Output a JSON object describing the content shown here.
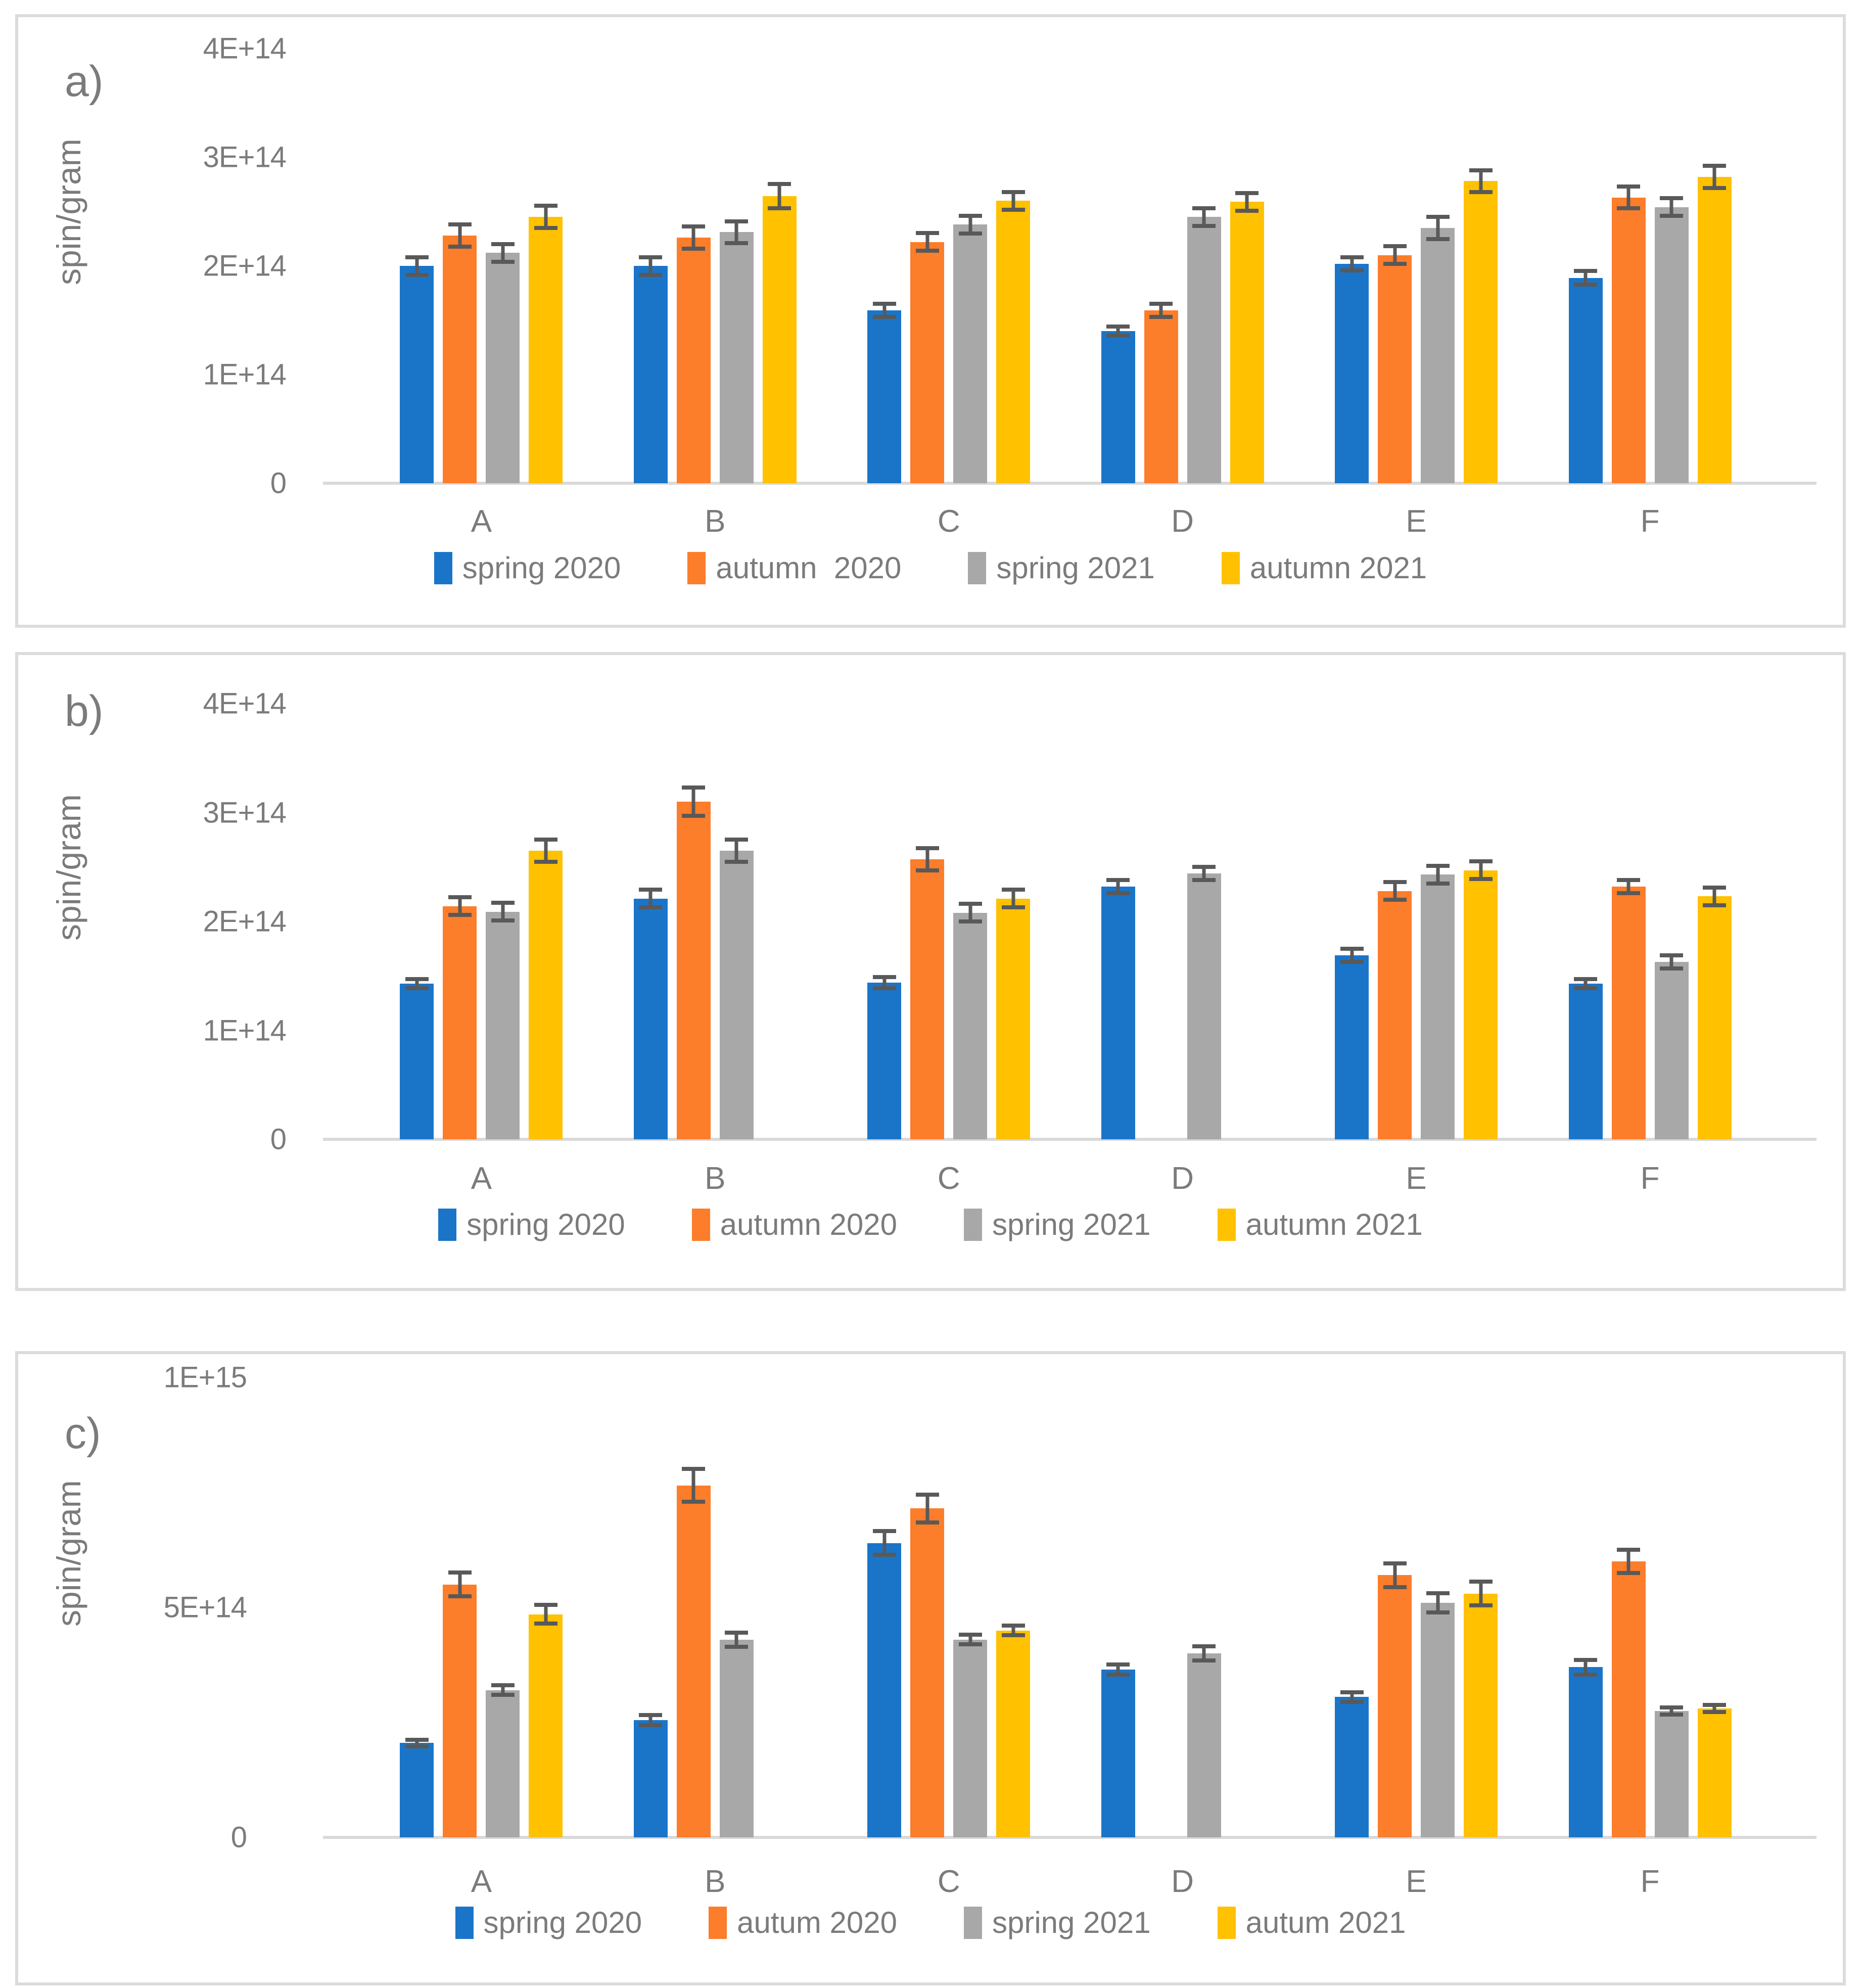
{
  "figure": {
    "background": "#ffffff",
    "panel_border_color": "#dcdcdc",
    "axis_line_color": "#d9d9d9",
    "text_color": "#7b7b7b",
    "error_bar_color": "#595959"
  },
  "colors": {
    "blue": "#1a75c9",
    "orange": "#fc7d2a",
    "gray": "#a8a8a8",
    "yellow": "#ffc100"
  },
  "chart_data": [
    {
      "type": "bar",
      "panel_label": "a)",
      "ylabel": "spin/gram",
      "unit": "spin/gram",
      "value_scale": "1E+14",
      "ymax": 4,
      "ylim": [
        0,
        4
      ],
      "grid": false,
      "legend_position": "bottom",
      "yticks": [
        {
          "value": 0,
          "label": "0"
        },
        {
          "value": 1,
          "label": "1E+14"
        },
        {
          "value": 2,
          "label": "2E+14"
        },
        {
          "value": 3,
          "label": "3E+14"
        },
        {
          "value": 4,
          "label": "4E+14"
        }
      ],
      "categories": [
        "A",
        "B",
        "C",
        "D",
        "E",
        "F"
      ],
      "series": [
        {
          "name": "spring 2020",
          "color_key": "blue",
          "values": [
            2.0,
            2.0,
            1.59,
            1.4,
            2.02,
            1.89
          ],
          "errors": [
            0.1,
            0.1,
            0.08,
            0.06,
            0.08,
            0.08
          ]
        },
        {
          "name": "autumn  2020",
          "color_key": "orange",
          "values": [
            2.28,
            2.26,
            2.22,
            1.59,
            2.1,
            2.63
          ],
          "errors": [
            0.12,
            0.12,
            0.1,
            0.08,
            0.1,
            0.12
          ]
        },
        {
          "name": "spring 2021",
          "color_key": "gray",
          "values": [
            2.12,
            2.31,
            2.38,
            2.45,
            2.35,
            2.54
          ],
          "errors": [
            0.1,
            0.12,
            0.1,
            0.1,
            0.12,
            0.1
          ]
        },
        {
          "name": "autumn 2021",
          "color_key": "yellow",
          "values": [
            2.45,
            2.64,
            2.6,
            2.59,
            2.78,
            2.82
          ],
          "errors": [
            0.12,
            0.13,
            0.1,
            0.1,
            0.12,
            0.12
          ]
        }
      ]
    },
    {
      "type": "bar",
      "panel_label": "b)",
      "ylabel": "spin/gram",
      "unit": "spin/gram",
      "value_scale": "1E+14",
      "ymax": 4,
      "ylim": [
        0,
        4
      ],
      "grid": false,
      "legend_position": "bottom",
      "yticks": [
        {
          "value": 0,
          "label": "0"
        },
        {
          "value": 1,
          "label": "1E+14"
        },
        {
          "value": 2,
          "label": "2E+14"
        },
        {
          "value": 3,
          "label": "3E+14"
        },
        {
          "value": 4,
          "label": "4E+14"
        }
      ],
      "categories": [
        "A",
        "B",
        "C",
        "D",
        "E",
        "F"
      ],
      "series": [
        {
          "name": "spring 2020",
          "color_key": "blue",
          "values": [
            1.43,
            2.21,
            1.44,
            2.32,
            1.69,
            1.43
          ],
          "errors": [
            0.06,
            0.1,
            0.07,
            0.08,
            0.08,
            0.06
          ]
        },
        {
          "name": "autumn 2020",
          "color_key": "orange",
          "values": [
            2.14,
            3.1,
            2.57,
            null,
            2.28,
            2.32
          ],
          "errors": [
            0.1,
            0.15,
            0.12,
            null,
            0.1,
            0.08
          ]
        },
        {
          "name": "spring 2021",
          "color_key": "gray",
          "values": [
            2.09,
            2.65,
            2.08,
            2.44,
            2.43,
            1.63
          ],
          "errors": [
            0.1,
            0.12,
            0.1,
            0.08,
            0.1,
            0.08
          ]
        },
        {
          "name": "autumn 2021",
          "color_key": "yellow",
          "values": [
            2.65,
            null,
            2.21,
            null,
            2.47,
            2.23
          ],
          "errors": [
            0.12,
            null,
            0.1,
            null,
            0.1,
            0.1
          ]
        }
      ]
    },
    {
      "type": "bar",
      "panel_label": "c)",
      "ylabel": "spin/gram",
      "unit": "spin/gram",
      "value_scale": "1E+14",
      "ymax": 10,
      "ylim": [
        0,
        10
      ],
      "grid": false,
      "legend_position": "bottom",
      "yticks": [
        {
          "value": 0,
          "label": "0"
        },
        {
          "value": 5,
          "label": "5E+14"
        },
        {
          "value": 10,
          "label": "1E+15"
        }
      ],
      "categories": [
        "A",
        "B",
        "C",
        "D",
        "E",
        "F"
      ],
      "series": [
        {
          "name": "spring 2020",
          "color_key": "blue",
          "values": [
            2.05,
            2.55,
            6.4,
            3.65,
            3.05,
            3.7
          ],
          "errors": [
            0.12,
            0.15,
            0.3,
            0.15,
            0.15,
            0.2
          ]
        },
        {
          "name": "autum 2020",
          "color_key": "orange",
          "values": [
            5.5,
            7.65,
            7.15,
            null,
            5.7,
            6.0
          ],
          "errors": [
            0.3,
            0.4,
            0.35,
            null,
            0.3,
            0.3
          ]
        },
        {
          "name": "spring 2021",
          "color_key": "gray",
          "values": [
            3.2,
            4.3,
            4.3,
            4.0,
            5.1,
            2.75
          ],
          "errors": [
            0.15,
            0.2,
            0.15,
            0.2,
            0.25,
            0.12
          ]
        },
        {
          "name": "autum 2021",
          "color_key": "yellow",
          "values": [
            4.85,
            null,
            4.5,
            null,
            5.3,
            2.8
          ],
          "errors": [
            0.25,
            null,
            0.15,
            null,
            0.3,
            0.12
          ]
        }
      ]
    }
  ]
}
